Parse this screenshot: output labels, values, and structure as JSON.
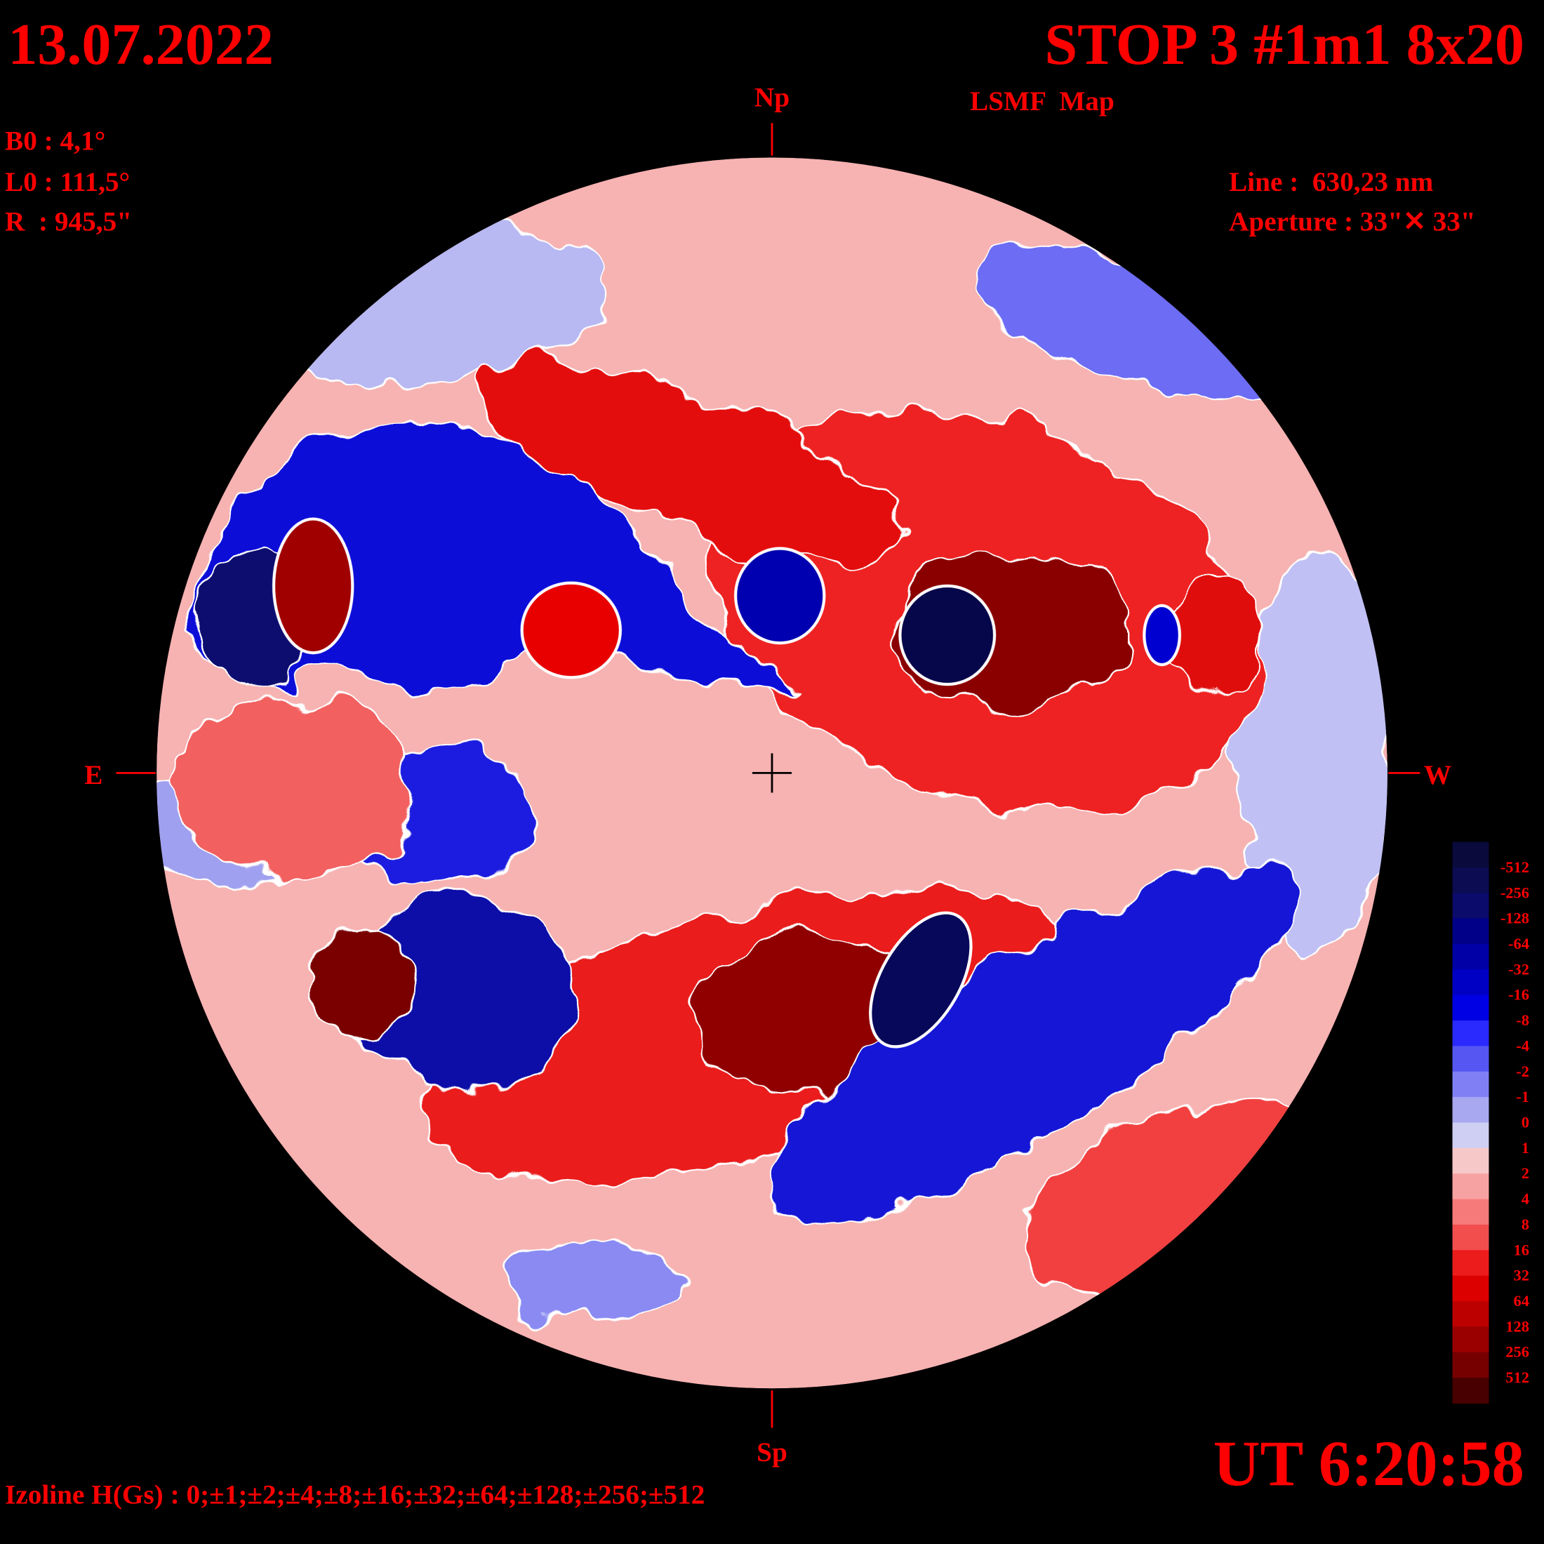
{
  "header": {
    "date": "13.07.2022",
    "title": "STOP 3 #1m1 8x20",
    "subtitle": "LSMF  Map"
  },
  "params": {
    "left": [
      "B0 : 4,1°",
      "L0 : 111,5°",
      "R  : 945,5\""
    ],
    "right": [
      "Line :  630,23 nm",
      "Aperture : 33\"✕ 33\""
    ]
  },
  "directions": {
    "north": "Np",
    "south": "Sp",
    "east": "E",
    "west": "W"
  },
  "time": "UT 6:20:58",
  "isolines": "Izoline H(Gs) : 0;±1;±2;±4;±8;±16;±32;±64;±128;±256;±512",
  "colorbar": {
    "labels": [
      -512,
      -256,
      -128,
      -64,
      -32,
      -16,
      -8,
      -4,
      -2,
      -1,
      0,
      1,
      2,
      4,
      8,
      16,
      32,
      64,
      128,
      256,
      512
    ],
    "colors": [
      "#0a0a3c",
      "#0c0c52",
      "#0b0b6c",
      "#000088",
      "#0000a6",
      "#0000c4",
      "#0000e4",
      "#2a2aff",
      "#5656f2",
      "#8080f4",
      "#a8a8f0",
      "#cfcff4",
      "#f7c8c8",
      "#f7a2a2",
      "#f67a7a",
      "#f24e4e",
      "#ec1c1c",
      "#dc0000",
      "#bc0000",
      "#9a0000",
      "#760000",
      "#480000"
    ]
  }
}
